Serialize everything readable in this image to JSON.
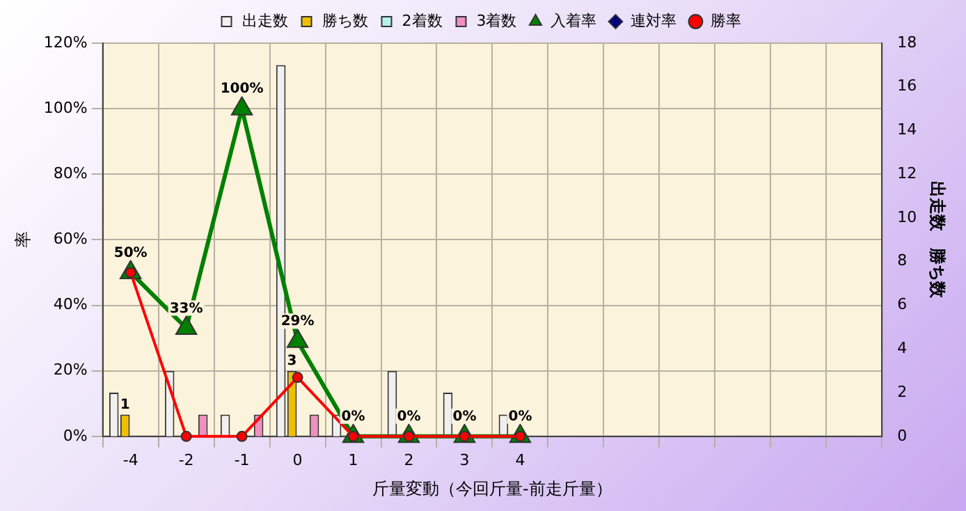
{
  "chart_data": {
    "type": "bar",
    "xlabel": "斤量変動（今回斤量-前走斤量）",
    "ylabel": "率",
    "y2label": "出走数　勝ち数",
    "categories": [
      "-4",
      "-2",
      "-1",
      "0",
      "1",
      "2",
      "3",
      "4",
      null,
      null,
      null,
      null,
      null,
      null
    ],
    "series": [
      {
        "name": "出走数",
        "axis": "y2",
        "color": "#f0f0f0",
        "values": [
          2,
          3,
          1,
          17,
          1,
          3,
          2,
          1,
          null,
          null,
          null,
          null,
          null,
          null
        ]
      },
      {
        "name": "勝ち数",
        "axis": "y2",
        "color": "#f0c000",
        "values": [
          1,
          0,
          0,
          3,
          0,
          0,
          0,
          0,
          null,
          null,
          null,
          null,
          null,
          null
        ],
        "value_labels": [
          "1",
          null,
          null,
          "3",
          null,
          null,
          null,
          null,
          null,
          null,
          null,
          null,
          null,
          null
        ]
      },
      {
        "name": "2着数",
        "axis": "y2",
        "color": "#b8f0f0",
        "values": [
          0,
          0,
          0,
          0,
          0,
          0,
          0,
          0,
          null,
          null,
          null,
          null,
          null,
          null
        ]
      },
      {
        "name": "3着数",
        "axis": "y2",
        "color": "#f090c0",
        "values": [
          0,
          1,
          1,
          1,
          0,
          0,
          0,
          0,
          null,
          null,
          null,
          null,
          null,
          null
        ]
      },
      {
        "name": "入着率",
        "type": "line",
        "marker": "triangle",
        "color": "#008000",
        "values": [
          50,
          33,
          100,
          29,
          0,
          0,
          0,
          0,
          null,
          null,
          null,
          null,
          null,
          null
        ],
        "value_labels": [
          "50%",
          "33%",
          "100%",
          "29%",
          "0%",
          "0%",
          "0%",
          "0%",
          null,
          null,
          null,
          null,
          null,
          null
        ]
      },
      {
        "name": "連対率",
        "type": "line",
        "marker": "diamond",
        "color": "#000080",
        "values": [
          null,
          null,
          null,
          null,
          null,
          null,
          null,
          null,
          null,
          null,
          null,
          null,
          null,
          null
        ]
      },
      {
        "name": "勝率",
        "type": "line",
        "marker": "circle",
        "color": "#ff0000",
        "values": [
          50,
          0,
          0,
          18,
          0,
          0,
          0,
          0,
          null,
          null,
          null,
          null,
          null,
          null
        ]
      }
    ],
    "ylim": [
      0,
      120
    ],
    "yticks": [
      {
        "value": 0,
        "label": "0%"
      },
      {
        "value": 20,
        "label": "20%"
      },
      {
        "value": 40,
        "label": "40%"
      },
      {
        "value": 60,
        "label": "60%"
      },
      {
        "value": 80,
        "label": "80%"
      },
      {
        "value": 100,
        "label": "100%"
      },
      {
        "value": 120,
        "label": "120%"
      }
    ],
    "y2lim": [
      0,
      18
    ],
    "y2ticks": [
      0,
      2,
      4,
      6,
      8,
      10,
      12,
      14,
      16,
      18
    ],
    "grid": true,
    "legend": "top"
  }
}
